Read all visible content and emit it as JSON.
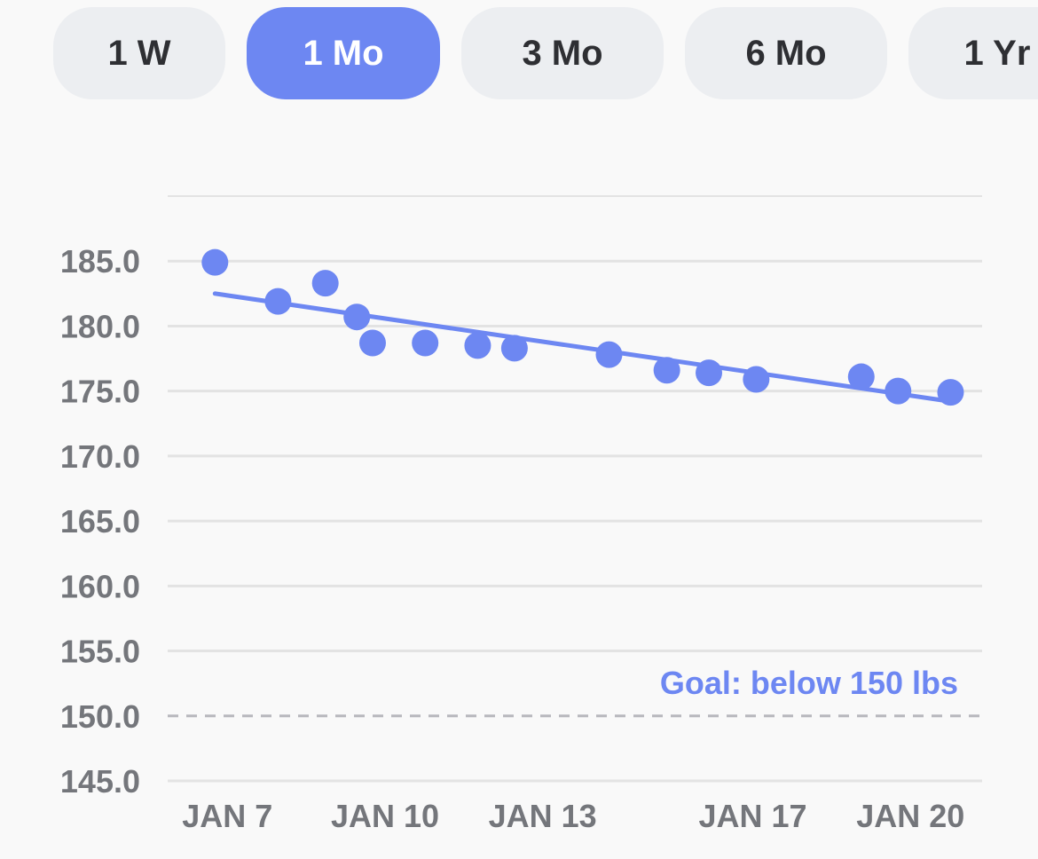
{
  "range_tabs": [
    {
      "label": "1 W",
      "selected": false
    },
    {
      "label": "1 Mo",
      "selected": true
    },
    {
      "label": "3 Mo",
      "selected": false
    },
    {
      "label": "6 Mo",
      "selected": false
    },
    {
      "label": "1 Yr",
      "selected": false
    }
  ],
  "colors": {
    "accent": "#6d87f2",
    "tab_background": "#eceef1",
    "tab_text": "#2e2f33",
    "gridline": "#e3e3e3",
    "axis_text": "#74767b",
    "goal_line": "#b8b8bd"
  },
  "chart_data": {
    "type": "scatter",
    "title": "",
    "xlabel": "",
    "ylabel": "",
    "x_ticks": [
      "JAN 7",
      "JAN 10",
      "JAN 13",
      "JAN 17",
      "JAN 20"
    ],
    "x_tick_days": [
      7,
      10,
      13,
      17,
      20
    ],
    "y_ticks": [
      "145.0",
      "150.0",
      "155.0",
      "160.0",
      "165.0",
      "170.0",
      "175.0",
      "180.0",
      "185.0"
    ],
    "y_tick_values": [
      145,
      150,
      155,
      160,
      165,
      170,
      175,
      180,
      185
    ],
    "ylim": [
      145,
      190
    ],
    "xlim": [
      6.1,
      21.6
    ],
    "grid": true,
    "series": [
      {
        "points": [
          {
            "x": 7.0,
            "y": 184.9
          },
          {
            "x": 8.2,
            "y": 181.9
          },
          {
            "x": 9.1,
            "y": 183.3
          },
          {
            "x": 9.7,
            "y": 180.7
          },
          {
            "x": 10.0,
            "y": 178.7
          },
          {
            "x": 11.0,
            "y": 178.7
          },
          {
            "x": 12.0,
            "y": 178.5
          },
          {
            "x": 12.7,
            "y": 178.3
          },
          {
            "x": 14.5,
            "y": 177.8
          },
          {
            "x": 15.6,
            "y": 176.6
          },
          {
            "x": 16.4,
            "y": 176.4
          },
          {
            "x": 17.3,
            "y": 175.9
          },
          {
            "x": 19.3,
            "y": 176.1
          },
          {
            "x": 20.0,
            "y": 175.0
          },
          {
            "x": 21.0,
            "y": 174.9
          }
        ]
      }
    ],
    "trend_line": {
      "start": {
        "x": 7.0,
        "y": 182.5
      },
      "end": {
        "x": 21.0,
        "y": 174.2
      }
    },
    "goal": {
      "value": 150,
      "label": "Goal: below 150 lbs"
    }
  }
}
